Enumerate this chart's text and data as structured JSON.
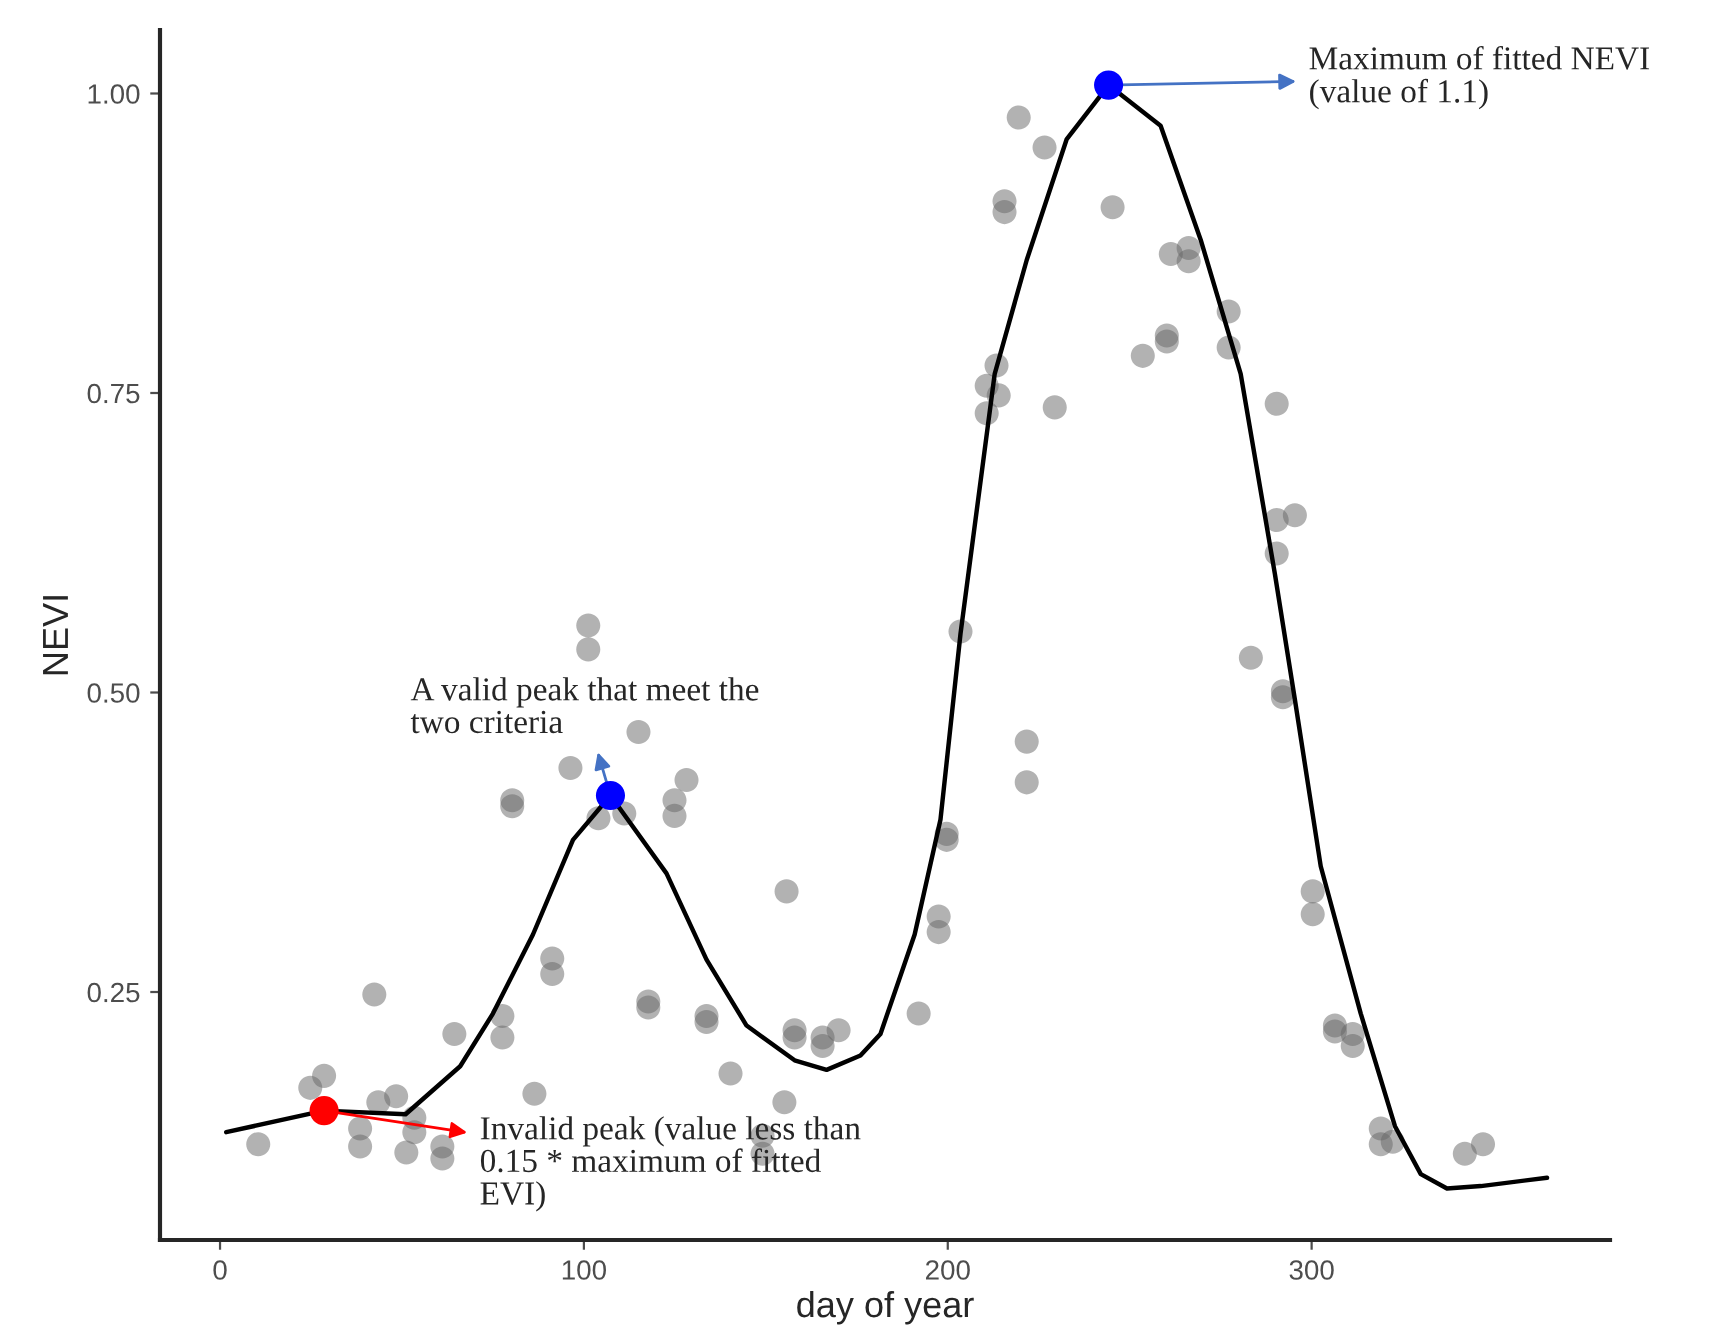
{
  "chart_data": {
    "type": "scatter",
    "xlabel": "day of year",
    "ylabel": "NEVI",
    "xlim": [
      -16.5,
      382
    ],
    "ylim": [
      0.043,
      1.053
    ],
    "xticks": [
      0,
      100,
      200,
      300
    ],
    "yticks": [
      {
        "value": 0.25,
        "label": "0.25"
      },
      {
        "value": 0.5,
        "label": "0.50"
      },
      {
        "value": 0.75,
        "label": "0.75"
      },
      {
        "value": 1.0,
        "label": "1.00"
      }
    ],
    "grid": false,
    "legend": false,
    "series": [
      {
        "color": "#666666",
        "x": [
          10.5,
          24.8,
          28.6,
          38.5,
          38.5,
          43.5,
          42.4,
          48.4,
          51.2,
          53.4,
          53.4,
          61.1,
          61.1,
          64.4,
          77.6,
          77.6,
          86.4,
          80.3,
          80.3,
          91.3,
          91.3,
          96.3,
          101.2,
          101.2,
          104.0,
          111.1,
          115.0,
          117.7,
          117.7,
          124.9,
          124.9,
          128.2,
          133.7,
          133.7,
          140.3,
          149.1,
          149.1,
          155.1,
          155.7,
          157.9,
          157.9,
          165.6,
          165.6,
          170.0,
          192.0,
          197.5,
          197.5,
          199.7,
          199.7,
          203.5,
          210.7,
          210.7,
          213.4,
          214.0,
          215.6,
          215.6,
          219.5,
          221.7,
          221.7,
          226.6,
          229.4,
          245.3,
          253.6,
          260.2,
          260.2,
          261.3,
          266.2,
          266.2,
          277.2,
          277.2,
          283.3,
          290.4,
          290.4,
          295.4,
          290.4,
          292.1,
          292.1,
          300.3,
          300.3,
          306.4,
          306.4,
          311.3,
          311.3,
          319.0,
          319.0,
          322.3,
          342.1,
          347.1
        ],
        "values": [
          0.123,
          0.17,
          0.18,
          0.136,
          0.121,
          0.158,
          0.248,
          0.163,
          0.116,
          0.145,
          0.133,
          0.121,
          0.111,
          0.215,
          0.23,
          0.212,
          0.165,
          0.41,
          0.405,
          0.278,
          0.265,
          0.437,
          0.556,
          0.536,
          0.395,
          0.399,
          0.467,
          0.242,
          0.237,
          0.41,
          0.397,
          0.427,
          0.23,
          0.225,
          0.182,
          0.13,
          0.115,
          0.158,
          0.334,
          0.218,
          0.212,
          0.212,
          0.205,
          0.218,
          0.232,
          0.313,
          0.3,
          0.382,
          0.377,
          0.551,
          0.756,
          0.733,
          0.773,
          0.748,
          0.91,
          0.901,
          0.98,
          0.459,
          0.425,
          0.955,
          0.738,
          0.905,
          0.781,
          0.798,
          0.793,
          0.866,
          0.871,
          0.86,
          0.818,
          0.788,
          0.529,
          0.741,
          0.644,
          0.648,
          0.616,
          0.501,
          0.496,
          0.334,
          0.315,
          0.222,
          0.217,
          0.215,
          0.205,
          0.136,
          0.123,
          0.125,
          0.115,
          0.123
        ]
      },
      {
        "type": "line",
        "color": "#000000",
        "x": [
          1.7,
          28.6,
          51,
          66,
          75,
          86,
          97,
          107.3,
          122.7,
          133.7,
          144.7,
          157.9,
          166.7,
          176,
          181.5,
          190.9,
          198,
          203.5,
          212.9,
          221.7,
          232.7,
          244.2,
          258.5,
          269.5,
          280.5,
          289.9,
          295.4,
          302.5,
          313.5,
          322.9,
          330,
          337.2,
          346.5,
          364.7
        ],
        "values": [
          0.133,
          0.151,
          0.148,
          0.188,
          0.232,
          0.298,
          0.377,
          0.414,
          0.349,
          0.277,
          0.222,
          0.193,
          0.185,
          0.197,
          0.215,
          0.298,
          0.394,
          0.549,
          0.766,
          0.861,
          0.962,
          1.007,
          0.973,
          0.878,
          0.766,
          0.599,
          0.494,
          0.355,
          0.232,
          0.138,
          0.098,
          0.086,
          0.088,
          0.095
        ]
      },
      {
        "type": "scatter",
        "colors": [
          "#ff0000",
          "#0000ff",
          "#0000ff"
        ],
        "x": [
          28.6,
          107.3,
          244.2
        ],
        "values": [
          0.151,
          0.414,
          1.007
        ]
      }
    ],
    "annotations": [
      {
        "text": "Invalid peak (value less than\n0.15 * maximum of fitted\nEVI)",
        "x": 28.6,
        "y": 0.151
      },
      {
        "text": "A valid peak that meet the\ntwo criteria",
        "x": 107.3,
        "y": 0.414
      },
      {
        "text": "Maximum of fitted NEVI\n(value of 1.1)",
        "x": 244.2,
        "y": 1.007
      }
    ]
  }
}
